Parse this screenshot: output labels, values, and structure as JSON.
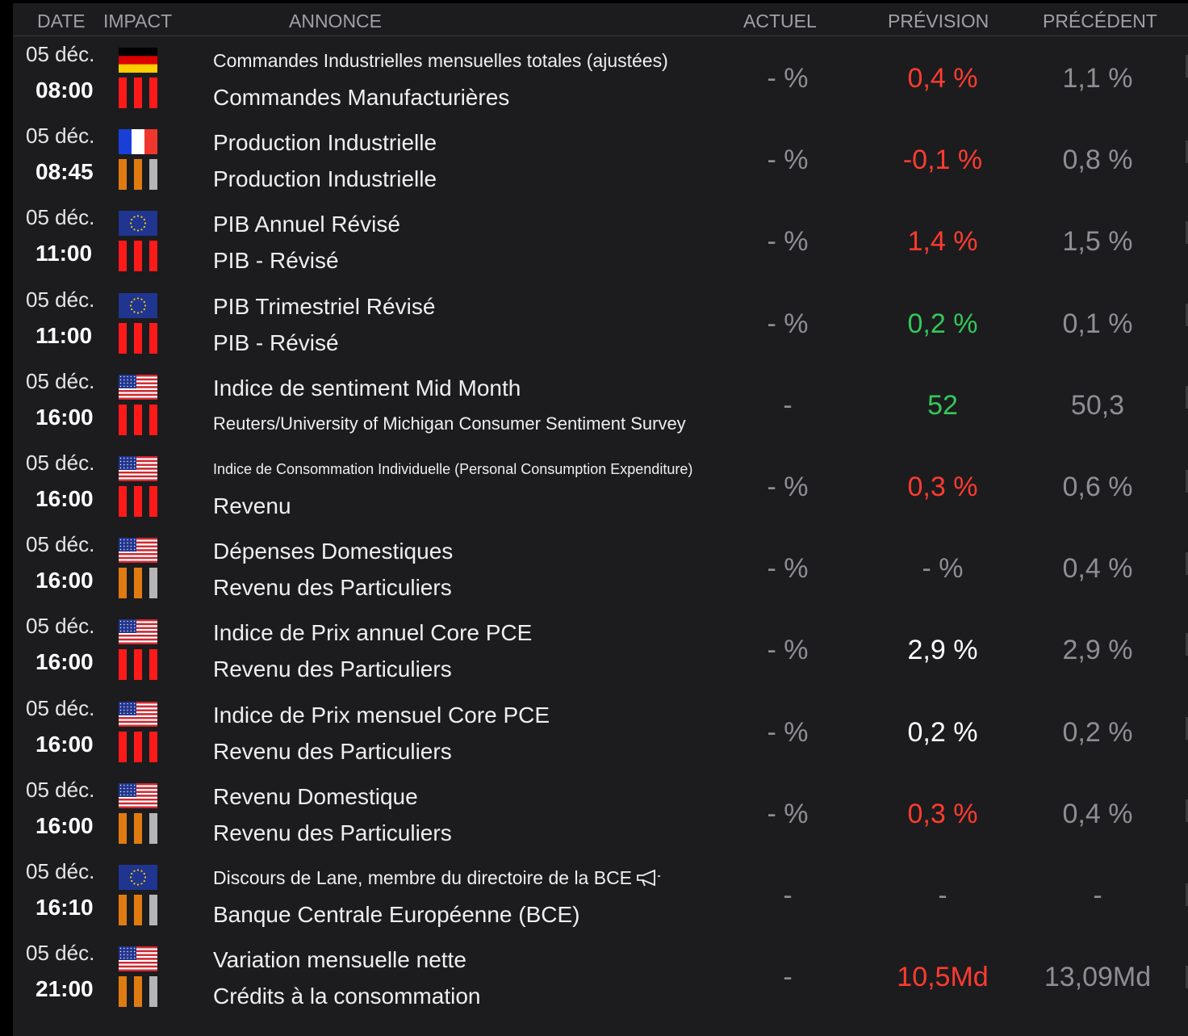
{
  "headers": {
    "date": "DATE",
    "impact": "IMPACT",
    "annonce": "ANNONCE",
    "actuel": "ACTUEL",
    "prevision": "PRÉVISION",
    "precedent": "PRÉCÉDENT"
  },
  "colors": {
    "high_impact": "#ff1a1a",
    "medium_impact": "#e07b12",
    "inactive_bar": "#b5b5b5",
    "negative": "#ff3b30",
    "positive": "#34c759"
  },
  "rows": [
    {
      "date": "05 déc.",
      "time": "08:00",
      "flag": "germany-flag",
      "impact": "high",
      "title": "Commandes Industrielles mensuelles totales (ajustées)",
      "subtitle": "Commandes Manufacturières",
      "actuel": "- %",
      "prevision": "0,4 %",
      "prevision_tone": "red",
      "precedent": "1,1 %"
    },
    {
      "date": "05 déc.",
      "time": "08:45",
      "flag": "france-flag",
      "impact": "medium",
      "title": "Production Industrielle",
      "subtitle": "Production Industrielle",
      "actuel": "- %",
      "prevision": "-0,1 %",
      "prevision_tone": "red",
      "precedent": "0,8 %"
    },
    {
      "date": "05 déc.",
      "time": "11:00",
      "flag": "eu-flag",
      "impact": "high",
      "title": "PIB Annuel Révisé",
      "subtitle": "PIB - Révisé",
      "actuel": "- %",
      "prevision": "1,4 %",
      "prevision_tone": "red",
      "precedent": "1,5 %"
    },
    {
      "date": "05 déc.",
      "time": "11:00",
      "flag": "eu-flag",
      "impact": "high",
      "title": "PIB Trimestriel Révisé",
      "subtitle": "PIB - Révisé",
      "actuel": "- %",
      "prevision": "0,2 %",
      "prevision_tone": "green",
      "precedent": "0,1 %"
    },
    {
      "date": "05 déc.",
      "time": "16:00",
      "flag": "usa-flag",
      "impact": "high",
      "title": "Indice de sentiment Mid Month",
      "subtitle": "Reuters/University of Michigan Consumer Sentiment Survey",
      "actuel": "-",
      "prevision": "52",
      "prevision_tone": "green",
      "precedent": "50,3"
    },
    {
      "date": "05 déc.",
      "time": "16:00",
      "flag": "usa-flag",
      "impact": "high",
      "title": "Indice de Consommation Individuelle (Personal Consumption Expenditure)",
      "subtitle": "Revenu",
      "actuel": "- %",
      "prevision": "0,3 %",
      "prevision_tone": "red",
      "precedent": "0,6 %"
    },
    {
      "date": "05 déc.",
      "time": "16:00",
      "flag": "usa-flag",
      "impact": "medium",
      "title": "Dépenses Domestiques",
      "subtitle": "Revenu des Particuliers",
      "actuel": "- %",
      "prevision": "- %",
      "prevision_tone": "grey",
      "precedent": "0,4 %"
    },
    {
      "date": "05 déc.",
      "time": "16:00",
      "flag": "usa-flag",
      "impact": "high",
      "title": "Indice de Prix annuel Core PCE",
      "subtitle": "Revenu des Particuliers",
      "actuel": "- %",
      "prevision": "2,9 %",
      "prevision_tone": "white",
      "precedent": "2,9 %"
    },
    {
      "date": "05 déc.",
      "time": "16:00",
      "flag": "usa-flag",
      "impact": "high",
      "title": "Indice de Prix mensuel Core PCE",
      "subtitle": "Revenu des Particuliers",
      "actuel": "- %",
      "prevision": "0,2 %",
      "prevision_tone": "white",
      "precedent": "0,2 %"
    },
    {
      "date": "05 déc.",
      "time": "16:00",
      "flag": "usa-flag",
      "impact": "medium",
      "title": "Revenu Domestique",
      "subtitle": "Revenu des Particuliers",
      "actuel": "- %",
      "prevision": "0,3 %",
      "prevision_tone": "red",
      "precedent": "0,4 %"
    },
    {
      "date": "05 déc.",
      "time": "16:10",
      "flag": "eu-flag",
      "impact": "medium",
      "title": "Discours de Lane, membre du directoire de la BCE",
      "subtitle": "Banque Centrale Européenne (BCE)",
      "actuel": "-",
      "prevision": "-",
      "prevision_tone": "grey",
      "precedent": "-",
      "icon": "megaphone-icon"
    },
    {
      "date": "05 déc.",
      "time": "21:00",
      "flag": "usa-flag",
      "impact": "medium",
      "title": "Variation mensuelle nette",
      "subtitle": "Crédits à la consommation",
      "actuel": "-",
      "prevision": "10,5Md",
      "prevision_tone": "red",
      "precedent": "13,09Md"
    }
  ]
}
